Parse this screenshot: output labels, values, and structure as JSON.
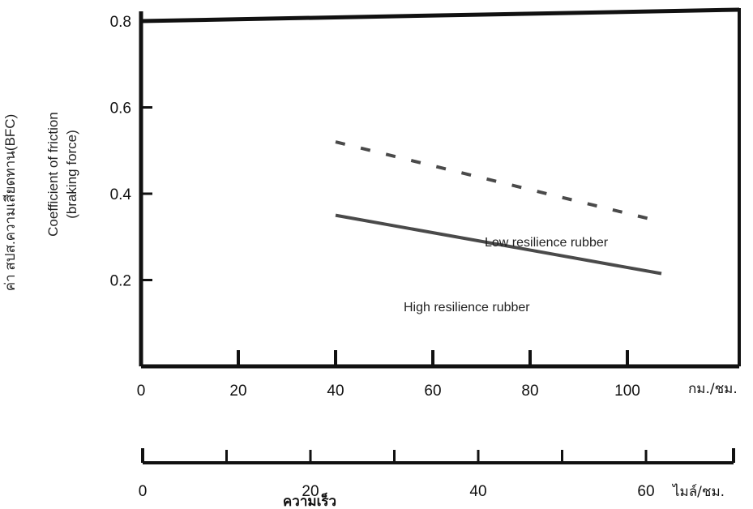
{
  "chart_data": {
    "type": "line",
    "ylabel_thai": "ค่า สปส.ความเสียดทาน(BFC)",
    "ylabel_line1": "Coefficient of friction",
    "ylabel_line2": "(braking force)",
    "y_ticks": [
      "0.8",
      "0.6",
      "0.4",
      "0.2"
    ],
    "ylim": [
      0,
      0.8
    ],
    "x_kmh": {
      "ticks": [
        "0",
        "20",
        "40",
        "60",
        "80",
        "100"
      ],
      "unit": "กม./ชม.",
      "range": [
        0,
        120
      ]
    },
    "x_mph": {
      "ticks": [
        "0",
        "20",
        "40",
        "60"
      ],
      "unit": "ไมล์/ชม.",
      "range": [
        0,
        65
      ]
    },
    "xlabel_thai": "ความเร็ว",
    "series": [
      {
        "name": "Low resilience rubber",
        "style": "dashed",
        "x": [
          40,
          107
        ],
        "y": [
          0.52,
          0.335
        ]
      },
      {
        "name": "High resilience rubber",
        "style": "solid",
        "x": [
          40,
          107
        ],
        "y": [
          0.35,
          0.215
        ]
      }
    ],
    "grid": false,
    "colors": {
      "axis": "#111111",
      "series": "#4a4a4a"
    }
  }
}
